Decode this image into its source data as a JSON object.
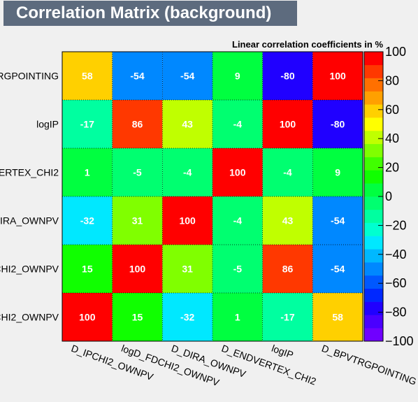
{
  "title": "Correlation Matrix (background)",
  "chart_data": {
    "type": "heatmap",
    "subtitle": "Linear correlation coefficients in %",
    "x_labels": [
      "D_IPCHI2_OWNPV",
      "logD_FDCHI2_OWNPV",
      "D_DIRA_OWNPV",
      "D_ENDVERTEX_CHI2",
      "logIP",
      "D_BPVTRGPOINTING"
    ],
    "y_labels_visible": [
      "RGPOINTING",
      "logIP",
      "VERTEX_CHI2",
      "DIRA_OWNPV",
      "CHI2_OWNPV",
      "CHI2_OWNPV"
    ],
    "rows_top_to_bottom": [
      [
        58,
        -54,
        -54,
        9,
        -80,
        100
      ],
      [
        -17,
        86,
        43,
        -4,
        100,
        -80
      ],
      [
        1,
        -5,
        -4,
        100,
        -4,
        9
      ],
      [
        -32,
        31,
        100,
        -4,
        43,
        -54
      ],
      [
        15,
        100,
        31,
        -5,
        86,
        -54
      ],
      [
        100,
        15,
        -32,
        1,
        -17,
        58
      ]
    ],
    "zlim": [
      -100,
      100
    ],
    "colorbar_ticks": [
      "100",
      "80",
      "60",
      "40",
      "20",
      "0",
      "−20",
      "−40",
      "−60",
      "−80",
      "−100"
    ],
    "colorbar_steps": [
      "#7000ff",
      "#4a00ff",
      "#2000ff",
      "#0028ff",
      "#0058ff",
      "#0088ff",
      "#00b8ff",
      "#00e8ff",
      "#00ffd0",
      "#00ffa0",
      "#00ff70",
      "#00ff40",
      "#10ff00",
      "#40ff00",
      "#80ff00",
      "#c0ff00",
      "#ffff00",
      "#ffd000",
      "#ffa000",
      "#ff7000",
      "#ff3800",
      "#ff0000"
    ]
  }
}
